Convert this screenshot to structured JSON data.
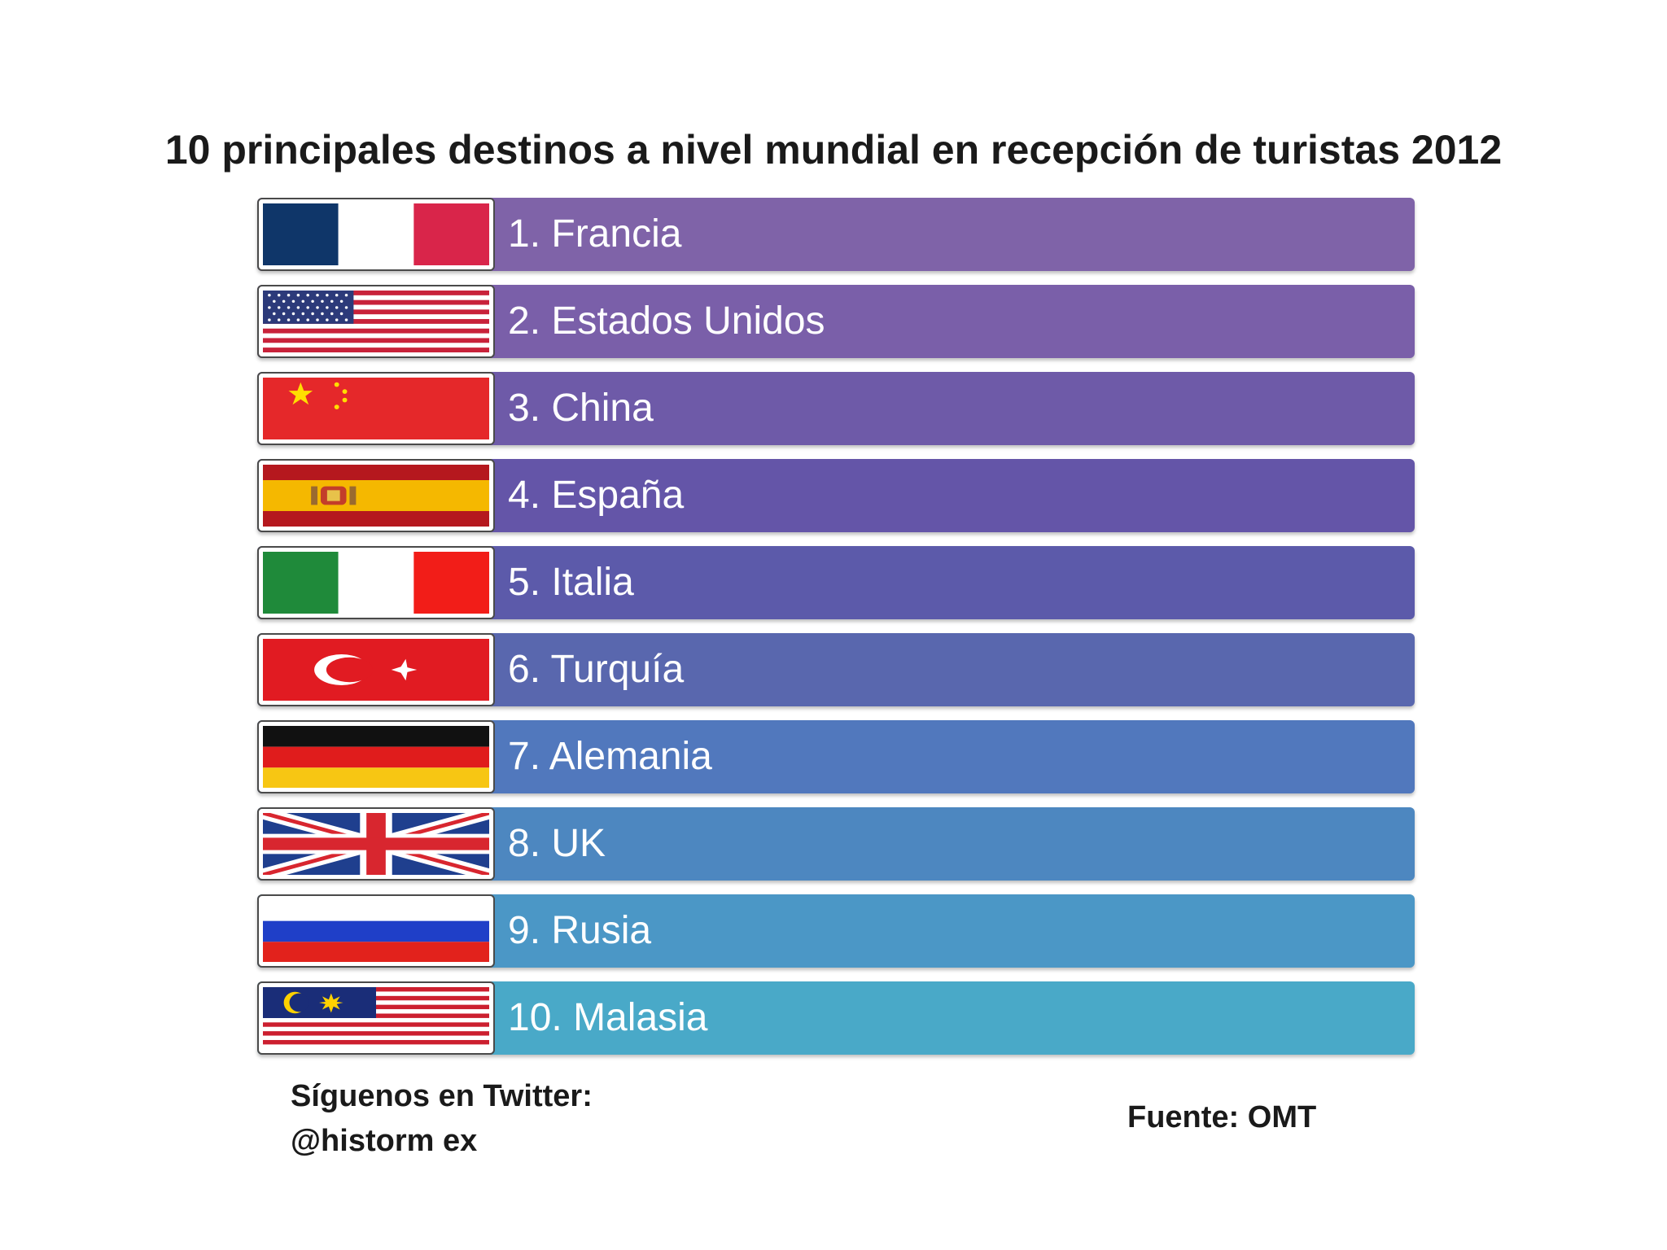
{
  "title": "10 principales destinos a nivel mundial en recepción de turistas 2012",
  "destinations": [
    {
      "label": "1. Francia",
      "color": "#7f63a8"
    },
    {
      "label": "2. Estados Unidos",
      "color": "#7a5fa9"
    },
    {
      "label": "3. China",
      "color": "#6e5aa8"
    },
    {
      "label": "4. España",
      "color": "#6455a8"
    },
    {
      "label": "5. Italia",
      "color": "#5c5aaa"
    },
    {
      "label": "6. Turquía",
      "color": "#5967ae"
    },
    {
      "label": "7. Alemania",
      "color": "#5178bd"
    },
    {
      "label": "8. UK",
      "color": "#4d87c0"
    },
    {
      "label": "9. Rusia",
      "color": "#4b97c6"
    },
    {
      "label": "10. Malasia",
      "color": "#49a9c8"
    }
  ],
  "footer": {
    "twitter_line1": "Síguenos en Twitter:",
    "twitter_line2": "@historm ex",
    "source": "Fuente: OMT"
  }
}
